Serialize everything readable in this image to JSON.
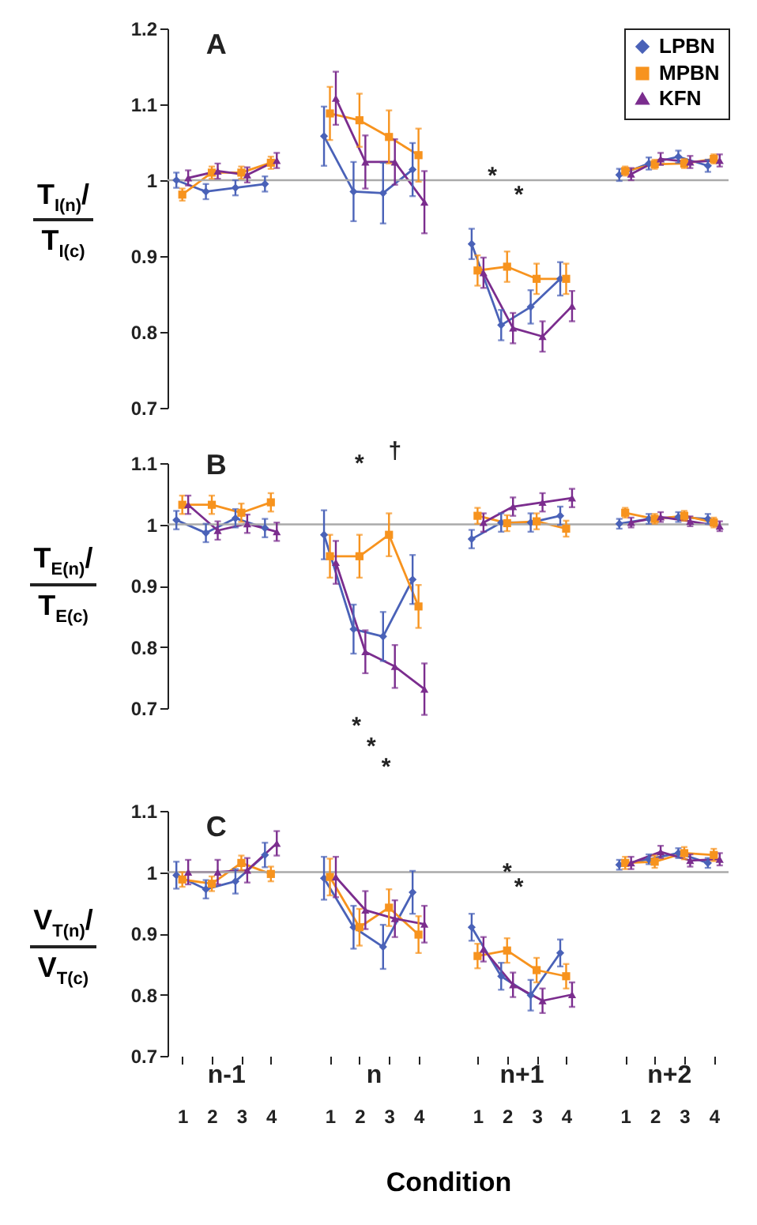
{
  "chart_data": [
    {
      "type": "line",
      "title": "A",
      "ylabel": "T$_{I(n)}$/T$_{I(c)}$",
      "categories": [
        "1",
        "2",
        "3",
        "4",
        null,
        "1",
        "2",
        "3",
        "4",
        null,
        "1",
        "2",
        "3",
        "4",
        null,
        "1",
        "2",
        "3",
        "4"
      ],
      "ylim": [
        0.7,
        1.2
      ],
      "yticks": [
        0.7,
        0.8,
        0.9,
        1,
        1.1,
        1.2
      ],
      "tick_labels": "y",
      "legend": "top right",
      "ref_lines": [
        {
          "axis": "y",
          "value": 1,
          "color": "#aaaaaa"
        }
      ],
      "annotations": [
        "*",
        "*"
      ],
      "series": [
        {
          "name": "LPBN",
          "color": "#4a62b8",
          "marker": "diamond",
          "values": [
            1.0,
            0.985,
            0.99,
            0.995,
            null,
            1.058,
            0.985,
            0.983,
            1.014,
            null,
            0.916,
            0.809,
            0.833,
            0.87,
            null,
            1.007,
            1.022,
            1.031,
            1.019
          ],
          "errors": [
            0.01,
            0.01,
            0.01,
            0.01,
            null,
            0.039,
            0.039,
            0.04,
            0.035,
            null,
            0.02,
            0.02,
            0.022,
            0.022,
            null,
            0.008,
            0.008,
            0.008,
            0.008
          ]
        },
        {
          "name": "MPBN",
          "color": "#f7931e",
          "marker": "square",
          "values": [
            0.981,
            1.01,
            1.01,
            1.023,
            null,
            1.088,
            1.079,
            1.057,
            1.033,
            null,
            0.881,
            0.886,
            0.87,
            0.87,
            null,
            1.012,
            1.021,
            1.022,
            1.028
          ],
          "errors": [
            0.008,
            0.008,
            0.008,
            0.008,
            null,
            0.035,
            0.035,
            0.035,
            0.035,
            null,
            0.02,
            0.02,
            0.02,
            0.02,
            null,
            0.006,
            0.006,
            0.006,
            0.006
          ]
        },
        {
          "name": "KFN",
          "color": "#7b2d8e",
          "marker": "triangle",
          "values": [
            1.003,
            1.012,
            1.007,
            1.026,
            null,
            1.108,
            1.024,
            1.024,
            0.971,
            null,
            0.878,
            0.805,
            0.794,
            0.834,
            null,
            1.008,
            1.028,
            1.024,
            1.026
          ],
          "errors": [
            0.01,
            0.01,
            0.01,
            0.01,
            null,
            0.035,
            0.035,
            0.03,
            0.041,
            null,
            0.02,
            0.02,
            0.02,
            0.02,
            null,
            0.008,
            0.008,
            0.008,
            0.008
          ]
        }
      ]
    },
    {
      "type": "line",
      "title": "B",
      "ylabel": "T$_{E(n)}$/T$_{E(c)}$",
      "categories": [
        "1",
        "2",
        "3",
        "4",
        null,
        "1",
        "2",
        "3",
        "4",
        null,
        "1",
        "2",
        "3",
        "4",
        null,
        "1",
        "2",
        "3",
        "4"
      ],
      "ylim": [
        0.7,
        1.1
      ],
      "yticks": [
        0.7,
        0.8,
        0.9,
        1,
        1.1
      ],
      "tick_labels": "y",
      "ref_lines": [
        {
          "axis": "y",
          "value": 1,
          "color": "#aaaaaa"
        }
      ],
      "annotations": [
        "*",
        "†",
        "*",
        "*",
        "*"
      ],
      "series": [
        {
          "color": "#4a62b8",
          "marker": "diamond",
          "values": [
            1.007,
            0.986,
            1.01,
            0.994,
            null,
            0.983,
            0.829,
            0.817,
            0.91,
            null,
            0.976,
            1.003,
            1.003,
            1.014,
            null,
            1.001,
            1.009,
            1.012,
            1.009
          ],
          "errors": [
            0.015,
            0.015,
            0.015,
            0.015,
            null,
            0.04,
            0.04,
            0.04,
            0.04,
            null,
            0.015,
            0.015,
            0.015,
            0.015,
            null,
            0.008,
            0.008,
            0.008,
            0.008
          ]
        },
        {
          "color": "#f7931e",
          "marker": "square",
          "values": [
            1.032,
            1.032,
            1.019,
            1.036,
            null,
            0.948,
            0.948,
            0.983,
            0.866,
            null,
            1.014,
            1.002,
            1.005,
            0.993,
            null,
            1.019,
            1.009,
            1.014,
            1.003
          ],
          "errors": [
            0.015,
            0.015,
            0.015,
            0.015,
            null,
            0.035,
            0.035,
            0.035,
            0.035,
            null,
            0.013,
            0.013,
            0.013,
            0.013,
            null,
            0.008,
            0.008,
            0.008,
            0.008
          ]
        },
        {
          "color": "#7b2d8e",
          "marker": "triangle",
          "values": [
            1.032,
            0.99,
            1.001,
            0.988,
            null,
            0.938,
            0.792,
            0.768,
            0.731,
            null,
            1.003,
            1.029,
            1.036,
            1.043,
            null,
            1.003,
            1.012,
            1.005,
            0.997
          ],
          "errors": [
            0.015,
            0.015,
            0.015,
            0.015,
            null,
            0.035,
            0.035,
            0.035,
            0.042,
            null,
            0.015,
            0.015,
            0.015,
            0.015,
            null,
            0.008,
            0.008,
            0.008,
            0.008
          ]
        }
      ]
    },
    {
      "type": "line",
      "title": "C",
      "ylabel": "V$_{T(n)}$/V$_{T(c)}$",
      "xlabel": "Condition",
      "categories": [
        "1",
        "2",
        "3",
        "4",
        null,
        "1",
        "2",
        "3",
        "4",
        null,
        "1",
        "2",
        "3",
        "4",
        null,
        "1",
        "2",
        "3",
        "4"
      ],
      "ylim": [
        0.7,
        1.1
      ],
      "yticks": [
        0.7,
        0.8,
        0.9,
        1,
        1.1
      ],
      "ref_lines": [
        {
          "axis": "y",
          "value": 1,
          "color": "#aaaaaa"
        }
      ],
      "annotations": [
        "*",
        "*",
        "n-1",
        "n",
        "n+1",
        "n+2"
      ],
      "series": [
        {
          "color": "#4a62b8",
          "marker": "diamond",
          "values": [
            0.995,
            0.972,
            0.985,
            1.028,
            null,
            0.99,
            0.91,
            0.878,
            0.967,
            null,
            0.91,
            0.83,
            0.799,
            0.868,
            null,
            1.012,
            1.021,
            1.031,
            1.015
          ],
          "errors": [
            0.022,
            0.015,
            0.02,
            0.02,
            null,
            0.035,
            0.035,
            0.036,
            0.035,
            null,
            0.022,
            0.022,
            0.025,
            0.022,
            null,
            0.008,
            0.008,
            0.008,
            0.008
          ]
        },
        {
          "color": "#f7931e",
          "marker": "square",
          "values": [
            0.988,
            0.981,
            1.015,
            0.997,
            null,
            0.992,
            0.91,
            0.942,
            0.898,
            null,
            0.863,
            0.872,
            0.84,
            0.83,
            null,
            1.015,
            1.017,
            1.031,
            1.028
          ],
          "errors": [
            0.012,
            0.012,
            0.012,
            0.012,
            null,
            0.03,
            0.03,
            0.03,
            0.03,
            null,
            0.02,
            0.02,
            0.02,
            0.02,
            null,
            0.01,
            0.01,
            0.01,
            0.01
          ]
        },
        {
          "color": "#7b2d8e",
          "marker": "triangle",
          "values": [
            1.0,
            1.0,
            1.003,
            1.047,
            null,
            0.992,
            0.938,
            0.924,
            0.915,
            null,
            0.874,
            0.816,
            0.79,
            0.8,
            null,
            1.015,
            1.033,
            1.019,
            1.021
          ],
          "errors": [
            0.02,
            0.02,
            0.02,
            0.02,
            null,
            0.033,
            0.031,
            0.03,
            0.03,
            null,
            0.02,
            0.02,
            0.02,
            0.02,
            null,
            0.01,
            0.01,
            0.01,
            0.01
          ]
        }
      ]
    }
  ]
}
